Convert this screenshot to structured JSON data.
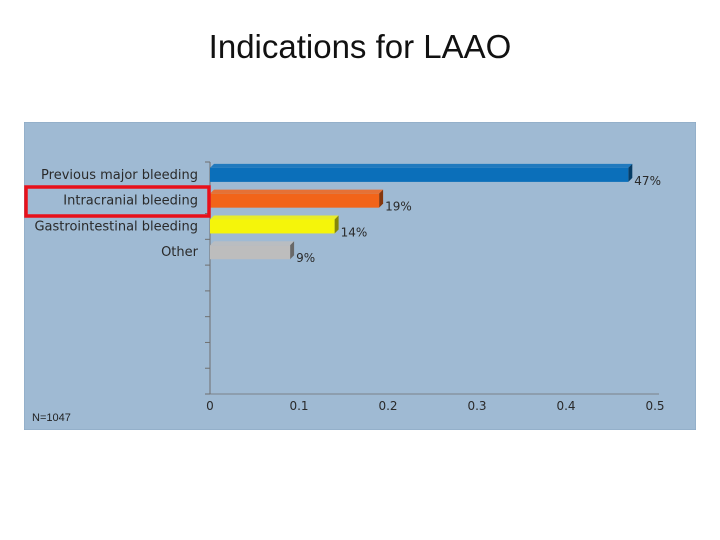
{
  "title": "Indications for LAAO",
  "colors": {
    "panel_bg": "#9fbad3",
    "axis": "#6f6f6f",
    "highlight_box": "#e8101a"
  },
  "chart_data": {
    "type": "bar",
    "orientation": "horizontal",
    "categories": [
      "Previous major bleeding",
      "Intracranial bleeding",
      "Gastrointestinal bleeding",
      "Other"
    ],
    "values": [
      0.47,
      0.19,
      0.14,
      0.09
    ],
    "data_labels": [
      "47%",
      "19%",
      "14%",
      "9%"
    ],
    "bar_colors": [
      "#0b6fba",
      "#f26419",
      "#f5f50a",
      "#bdbdbd"
    ],
    "xlim": [
      0,
      0.5
    ],
    "xticks": [
      "0",
      "0.1",
      "0.2",
      "0.3",
      "0.4",
      "0.5"
    ],
    "slot_count": 9,
    "highlighted_category": "Intracranial bleeding",
    "note": "N=1047"
  }
}
